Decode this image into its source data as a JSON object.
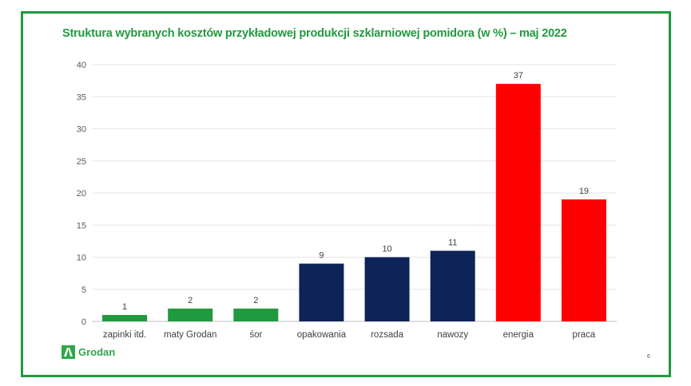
{
  "chart_data": {
    "type": "bar",
    "title": "Struktura wybranych  kosztów przykładowej  produkcji szklarniowej pomidora  (w %) – maj 2022",
    "categories": [
      "zapinki itd.",
      "maty Grodan",
      "śor",
      "opakowania",
      "rozsada",
      "nawozy",
      "energia",
      "praca"
    ],
    "values": [
      1,
      2,
      2,
      9,
      10,
      11,
      37,
      19
    ],
    "colors": [
      "#1f9a3e",
      "#1f9a3e",
      "#1f9a3e",
      "#0e2357",
      "#0e2357",
      "#0e2357",
      "#ff0000",
      "#ff0000"
    ],
    "ylim": [
      0,
      40
    ],
    "yticks": [
      0,
      5,
      10,
      15,
      20,
      25,
      30,
      35,
      40
    ],
    "xlabel": "",
    "ylabel": "",
    "grid": true,
    "legend": "none"
  },
  "logo": {
    "text": "Grodan"
  },
  "page_number": "6"
}
